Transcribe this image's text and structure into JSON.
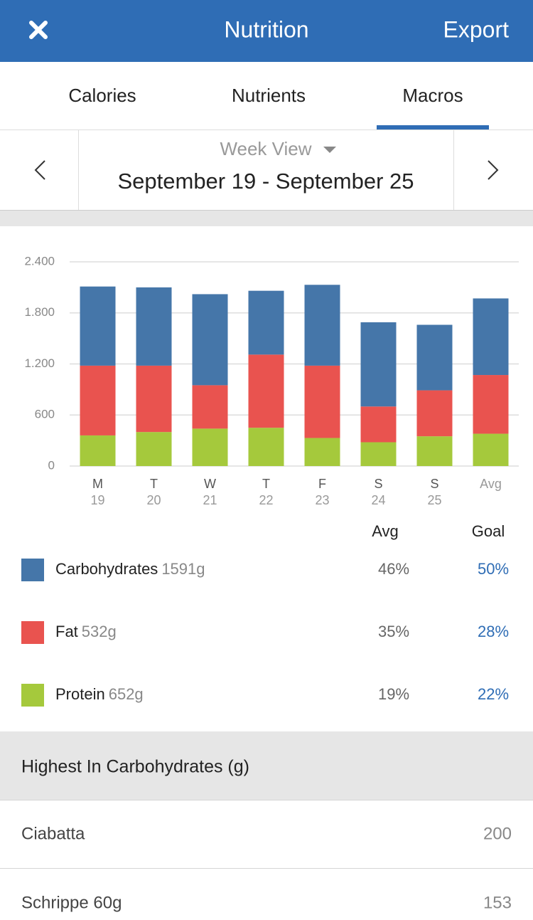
{
  "header": {
    "title": "Nutrition",
    "action": "Export"
  },
  "tabs": [
    "Calories",
    "Nutrients",
    "Macros"
  ],
  "date_nav": {
    "view": "Week View",
    "range": "September 19 - September 25"
  },
  "chart_data": {
    "type": "stacked-bar",
    "categories": [
      "M",
      "T",
      "W",
      "T",
      "F",
      "S",
      "S",
      "Avg"
    ],
    "category_sublabels": [
      "19",
      "20",
      "21",
      "22",
      "23",
      "24",
      "25",
      null
    ],
    "series": [
      {
        "name": "Carbohydrates",
        "color": "#4576a9",
        "values": [
          930,
          920,
          1070,
          750,
          950,
          990,
          770,
          900
        ]
      },
      {
        "name": "Fat",
        "color": "#e9534f",
        "values": [
          820,
          780,
          510,
          860,
          850,
          420,
          540,
          690
        ]
      },
      {
        "name": "Protein",
        "color": "#a5c93c",
        "values": [
          360,
          400,
          440,
          450,
          330,
          280,
          350,
          380
        ]
      }
    ],
    "ylim": [
      0,
      2400
    ],
    "yticks": [
      0,
      600,
      {
        "value": 1200,
        "label": "1.200"
      },
      {
        "value": 1800,
        "label": "1.800"
      },
      {
        "value": 2400,
        "label": "2.400"
      }
    ],
    "grid": true
  },
  "legend": {
    "headers": [
      "Avg",
      "Goal"
    ],
    "rows": [
      {
        "amount": "1591g",
        "avg": "46%",
        "goal": "50%"
      },
      {
        "amount": "532g",
        "avg": "35%",
        "goal": "28%"
      },
      {
        "amount": "652g",
        "avg": "19%",
        "goal": "22%"
      }
    ]
  },
  "highest": {
    "title": "Highest In Carbohydrates (g)",
    "rows": [
      [
        "Ciabatta",
        "200"
      ],
      [
        "Schrippe 60g",
        "153"
      ]
    ]
  }
}
